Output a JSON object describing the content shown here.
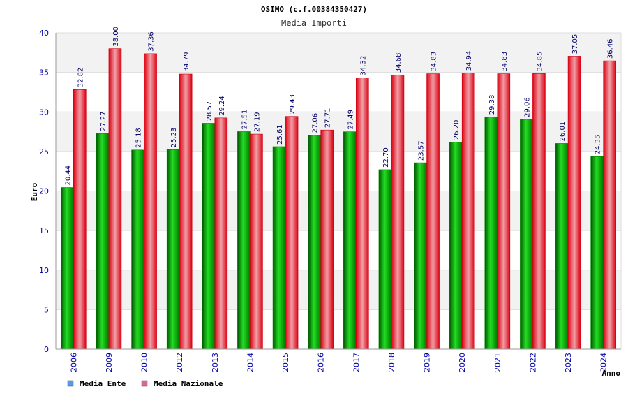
{
  "chart_data": {
    "type": "bar",
    "title": "OSIMO (c.f.00384350427)",
    "subtitle": "Media Importi",
    "xlabel": "Anno",
    "ylabel": "Euro",
    "ylim": [
      0,
      40
    ],
    "yticks": [
      0,
      5,
      10,
      15,
      20,
      25,
      30,
      35,
      40
    ],
    "grid": true,
    "legend_position": "bottom-left",
    "categories": [
      "2006",
      "2009",
      "2010",
      "2012",
      "2013",
      "2014",
      "2015",
      "2016",
      "2017",
      "2018",
      "2019",
      "2020",
      "2021",
      "2022",
      "2023",
      "2024"
    ],
    "series": [
      {
        "name": "Media Ente",
        "color": "#00aa00",
        "legend_color": "#5599ee",
        "values": [
          20.44,
          27.27,
          25.18,
          25.23,
          28.57,
          27.51,
          25.61,
          27.06,
          27.49,
          22.7,
          23.57,
          26.2,
          29.38,
          29.06,
          26.01,
          24.35
        ],
        "labels": [
          "20.44",
          "27.27",
          "25.18",
          "25.23",
          "28.57",
          "27.51",
          "25.61",
          "27.06",
          "27.49",
          "22.70",
          "23.57",
          "26.20",
          "29.38",
          "29.06",
          "26.01",
          "24.35"
        ]
      },
      {
        "name": "Media Nazionale",
        "color": "#ee1122",
        "legend_color": "#dd6699",
        "values": [
          32.82,
          38.0,
          37.36,
          34.79,
          29.24,
          27.19,
          29.43,
          27.71,
          34.32,
          34.68,
          34.83,
          34.94,
          34.83,
          34.85,
          37.05,
          36.46
        ],
        "labels": [
          "32.82",
          "38.00",
          "37.36",
          "34.79",
          "29.24",
          "27.19",
          "29.43",
          "27.71",
          "34.32",
          "34.68",
          "34.83",
          "34.94",
          "34.83",
          "34.85",
          "37.05",
          "36.46"
        ]
      }
    ]
  }
}
